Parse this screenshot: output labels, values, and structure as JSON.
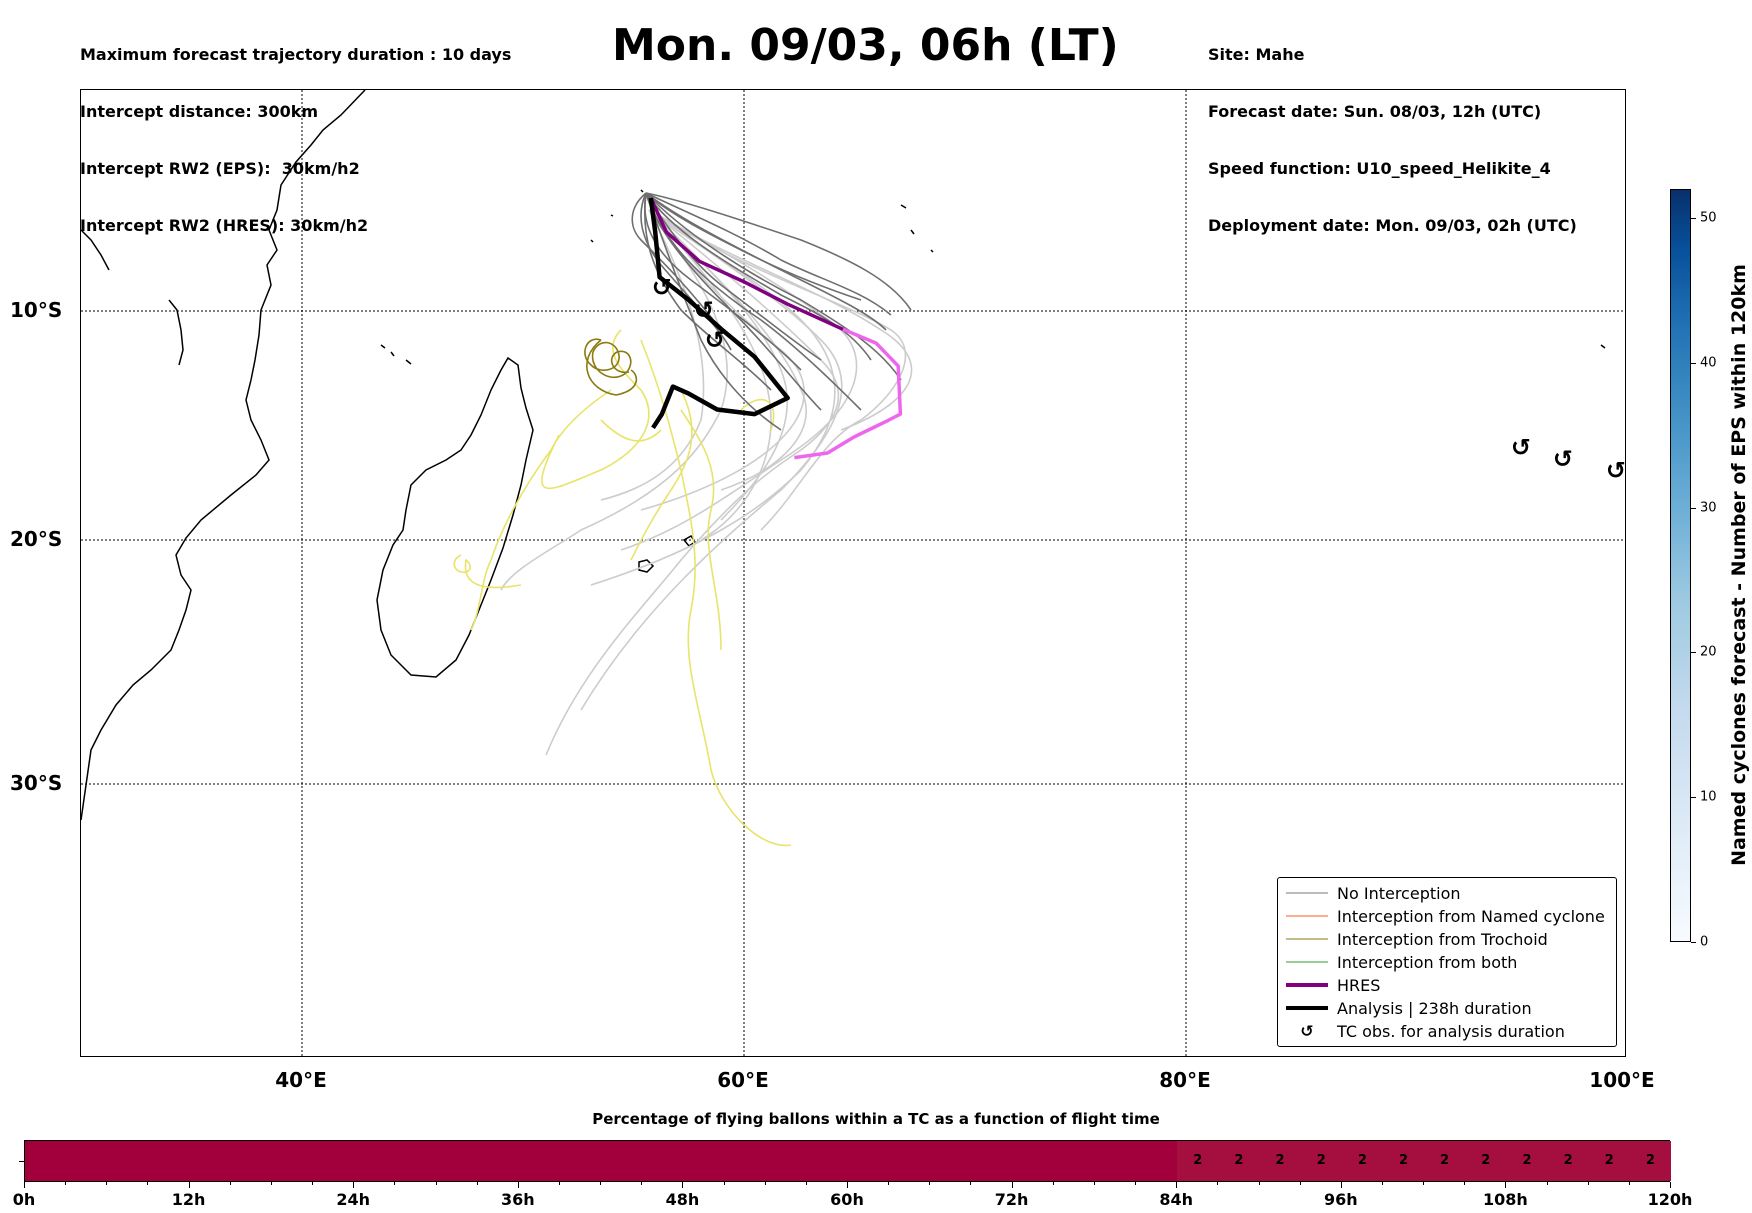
{
  "header": {
    "left_lines": [
      "Maximum forecast trajectory duration : 10 days",
      "Intercept distance: 300km",
      "Intercept RW2 (EPS):  30km/h2",
      "Intercept RW2 (HRES): 30km/h2"
    ],
    "title": "Mon. 09/03, 06h (LT)",
    "right_lines": [
      "Site: Mahe",
      "Forecast date: Sun. 08/03, 12h (UTC)",
      "Speed function: U10_speed_Helikite_4",
      "Deployment date: Mon. 09/03, 02h (UTC)"
    ]
  },
  "map": {
    "lon_range": [
      30,
      100
    ],
    "lat_range": [
      -42,
      1
    ],
    "lat_labels": [
      {
        "lat": -10,
        "label": "10°S"
      },
      {
        "lat": -20,
        "label": "20°S"
      },
      {
        "lat": -30,
        "label": "30°S"
      }
    ],
    "lon_labels": [
      {
        "lon": 40,
        "label": "40°E"
      },
      {
        "lon": 60,
        "label": "60°E"
      },
      {
        "lon": 80,
        "label": "80°E"
      },
      {
        "lon": 100,
        "label": "100°E"
      }
    ],
    "tc_symbols_lonlat": [
      [
        56.3,
        -9.0
      ],
      [
        58.2,
        -10.0
      ],
      [
        58.7,
        -11.3
      ],
      [
        95.2,
        -16.0
      ],
      [
        97.1,
        -16.5
      ],
      [
        99.5,
        -17.0
      ]
    ],
    "analysis_track_lonlat": [
      [
        55.8,
        -5.0
      ],
      [
        56.0,
        -6.5
      ],
      [
        56.2,
        -8.5
      ],
      [
        57.5,
        -9.5
      ],
      [
        59.0,
        -10.8
      ],
      [
        60.5,
        -12.0
      ],
      [
        62.0,
        -13.8
      ],
      [
        60.5,
        -14.5
      ],
      [
        58.8,
        -14.3
      ],
      [
        57.5,
        -13.6
      ],
      [
        56.8,
        -13.3
      ],
      [
        56.3,
        -14.5
      ],
      [
        55.9,
        -15.1
      ]
    ],
    "hres_track_lonlat": [
      [
        55.8,
        -5.0
      ],
      [
        56.5,
        -6.5
      ],
      [
        58.0,
        -7.8
      ],
      [
        60.0,
        -8.7
      ],
      [
        62.0,
        -9.7
      ],
      [
        64.5,
        -10.8
      ],
      [
        66.0,
        -11.4
      ],
      [
        67.0,
        -12.4
      ],
      [
        67.1,
        -14.5
      ],
      [
        66.5,
        -14.8
      ],
      [
        65.0,
        -15.5
      ],
      [
        63.8,
        -16.2
      ],
      [
        62.3,
        -16.4
      ]
    ]
  },
  "legend": {
    "items": [
      {
        "label": "No Interception",
        "color": "#777777",
        "style": "thin"
      },
      {
        "label": "Interception from Named cyclone",
        "color": "#ff5a1f",
        "style": "thin"
      },
      {
        "label": "Interception from Trochoid",
        "color": "#8a7a10",
        "style": "thin"
      },
      {
        "label": "Interception from both",
        "color": "#2aa02a",
        "style": "thin"
      },
      {
        "label": "HRES",
        "color": "#800080",
        "style": "thick"
      },
      {
        "label": "Analysis | 238h duration",
        "color": "#000000",
        "style": "thick"
      },
      {
        "label": "TC obs. for analysis duration",
        "color": "#000000",
        "style": "symbol"
      }
    ]
  },
  "colorbar": {
    "title": "Named cyclones forecast - Number of EPS within 120km",
    "range": [
      0,
      52
    ],
    "ticks": [
      "0",
      "10",
      "20",
      "30",
      "40",
      "50"
    ]
  },
  "timeline": {
    "title": "Percentage of flying ballons within a TC as a function of flight time",
    "hours_max": 120,
    "tick_labels": [
      "0h",
      "12h",
      "24h",
      "36h",
      "48h",
      "60h",
      "72h",
      "84h",
      "96h",
      "108h",
      "120h"
    ],
    "bin_hours": 3,
    "values_from_84h": [
      "2",
      "2",
      "2",
      "2",
      "2",
      "2",
      "2",
      "2",
      "2",
      "2",
      "2",
      "2"
    ]
  },
  "colors": {
    "timeline_main": "#a2003c",
    "timeline_right": "#a50f3f",
    "trajectory_no_interception": "#6e6e6e",
    "trajectory_light": "#cccccc",
    "trajectory_yellow": "#e8e46a"
  }
}
